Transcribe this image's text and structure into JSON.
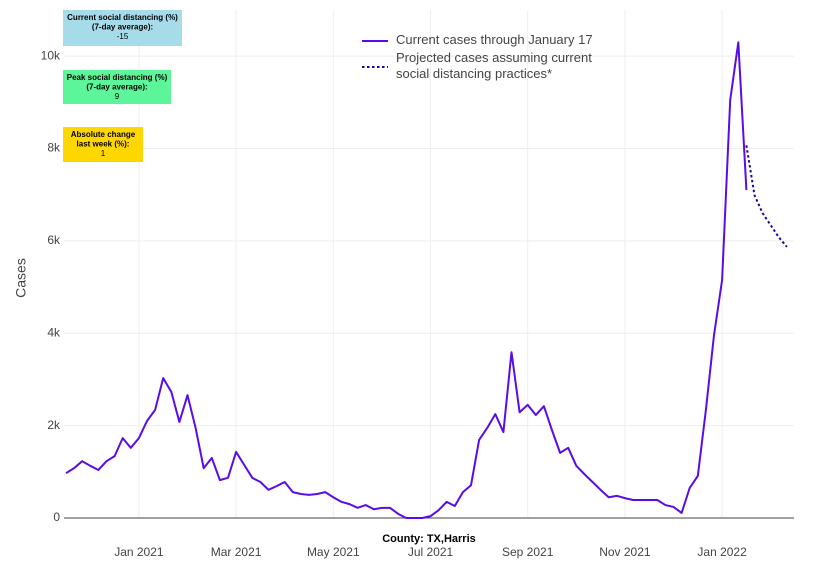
{
  "chart_data": {
    "type": "line",
    "y_label": "Cases",
    "x_label": "County: TX,Harris",
    "categories": [
      null,
      null,
      null,
      null,
      null,
      null,
      null,
      null,
      null,
      "Jan 2021",
      null,
      null,
      null,
      null,
      null,
      null,
      null,
      null,
      null,
      null,
      null,
      "Mar 2021",
      null,
      null,
      null,
      null,
      null,
      null,
      null,
      null,
      null,
      null,
      null,
      "May 2021",
      null,
      null,
      null,
      null,
      null,
      null,
      null,
      null,
      null,
      null,
      null,
      "Jul 2021",
      null,
      null,
      null,
      null,
      null,
      null,
      null,
      null,
      null,
      null,
      null,
      "Sep 2021",
      null,
      null,
      null,
      null,
      null,
      null,
      null,
      null,
      null,
      null,
      null,
      "Nov 2021",
      null,
      null,
      null,
      null,
      null,
      null,
      null,
      null,
      null,
      null,
      null,
      "Jan 2022",
      null,
      null,
      null,
      null,
      null,
      null,
      null,
      null
    ],
    "series": [
      {
        "name": "Current cases through January 17",
        "color": "#5a0ce8",
        "style": "solid",
        "values": [
          970,
          1080,
          1230,
          1130,
          1040,
          1230,
          1340,
          1730,
          1520,
          1730,
          2100,
          2340,
          3030,
          2730,
          2080,
          2660,
          1950,
          1080,
          1300,
          820,
          870,
          1430,
          1150,
          870,
          780,
          610,
          690,
          780,
          560,
          520,
          500,
          520,
          560,
          450,
          350,
          300,
          220,
          280,
          190,
          220,
          220,
          90,
          0,
          0,
          0,
          40,
          170,
          350,
          260,
          560,
          710,
          1690,
          1950,
          2250,
          1860,
          3590,
          2290,
          2450,
          2230,
          2420,
          1900,
          1410,
          1520,
          1130,
          950,
          780,
          610,
          450,
          480,
          430,
          390,
          390,
          390,
          390,
          280,
          240,
          110,
          650,
          910,
          2340,
          3960,
          5150,
          9050,
          10300,
          7100,
          null,
          null,
          null,
          null,
          null
        ]
      },
      {
        "name": "Projected cases assuming current social distancing practices*",
        "color": "#1d0b8f",
        "style": "dotted",
        "values": [
          null,
          null,
          null,
          null,
          null,
          null,
          null,
          null,
          null,
          null,
          null,
          null,
          null,
          null,
          null,
          null,
          null,
          null,
          null,
          null,
          null,
          null,
          null,
          null,
          null,
          null,
          null,
          null,
          null,
          null,
          null,
          null,
          null,
          null,
          null,
          null,
          null,
          null,
          null,
          null,
          null,
          null,
          null,
          null,
          null,
          null,
          null,
          null,
          null,
          null,
          null,
          null,
          null,
          null,
          null,
          null,
          null,
          null,
          null,
          null,
          null,
          null,
          null,
          null,
          null,
          null,
          null,
          null,
          null,
          null,
          null,
          null,
          null,
          null,
          null,
          null,
          null,
          null,
          null,
          null,
          null,
          null,
          null,
          null,
          8070,
          6990,
          6600,
          6340,
          6080,
          5870
        ]
      }
    ],
    "ylim": [
      0,
      11000
    ],
    "yticks": [
      0,
      {
        "value": 2000,
        "label": "2k"
      },
      {
        "value": 4000,
        "label": "4k"
      },
      {
        "value": 6000,
        "label": "6k"
      },
      {
        "value": 8000,
        "label": "8k"
      },
      {
        "value": 10000,
        "label": "10k"
      }
    ],
    "grid": true,
    "annotations": [
      {
        "lines": [
          "Current social distancing (%)",
          "(7-day average):",
          "-15"
        ],
        "color": "#a6dce9"
      },
      {
        "lines": [
          "Peak social distancing (%)",
          "(7-day average):",
          "9"
        ],
        "color": "#5cf59a"
      },
      {
        "lines": [
          "Absolute change",
          "last week (%):",
          "1"
        ],
        "color": "#ffd700"
      }
    ]
  }
}
